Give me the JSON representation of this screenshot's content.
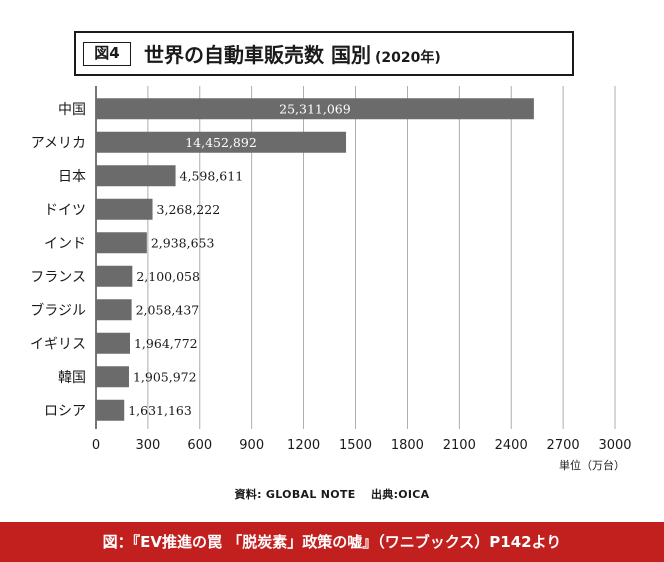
{
  "header": {
    "figure_label": "図4",
    "title": "世界の自動車販売数 国別",
    "year": "(2020年)"
  },
  "chart_data": {
    "type": "bar",
    "orientation": "horizontal",
    "categories": [
      "中国",
      "アメリカ",
      "日本",
      "ドイツ",
      "インド",
      "フランス",
      "ブラジル",
      "イギリス",
      "韓国",
      "ロシア"
    ],
    "values": [
      25311069,
      14452892,
      4598611,
      3268222,
      2938653,
      2100058,
      2058437,
      1964772,
      1905972,
      1631163
    ],
    "value_labels": [
      "25,311,069",
      "14,452,892",
      "4,598,611",
      "3,268,222",
      "2,938,653",
      "2,100,058",
      "2,058,437",
      "1,964,772",
      "1,905,972",
      "1,631,163"
    ],
    "x_ticks": [
      "0",
      "300",
      "600",
      "900",
      "1200",
      "1500",
      "1800",
      "2100",
      "2400",
      "2700",
      "3000"
    ],
    "xlim": [
      0,
      30000000
    ],
    "unit_label": "単位（万台）",
    "grid": "vertical",
    "bar_color": "#6b6b6b",
    "grid_color": "#9a9a9a"
  },
  "source_text": "資料: GLOBAL NOTE　 出典:OICA",
  "footer_text": "図：『EV推進の罠 「脱炭素」政策の嘘』（ワニブックス）P142より",
  "colors": {
    "footer_bg": "#c21f1f"
  }
}
